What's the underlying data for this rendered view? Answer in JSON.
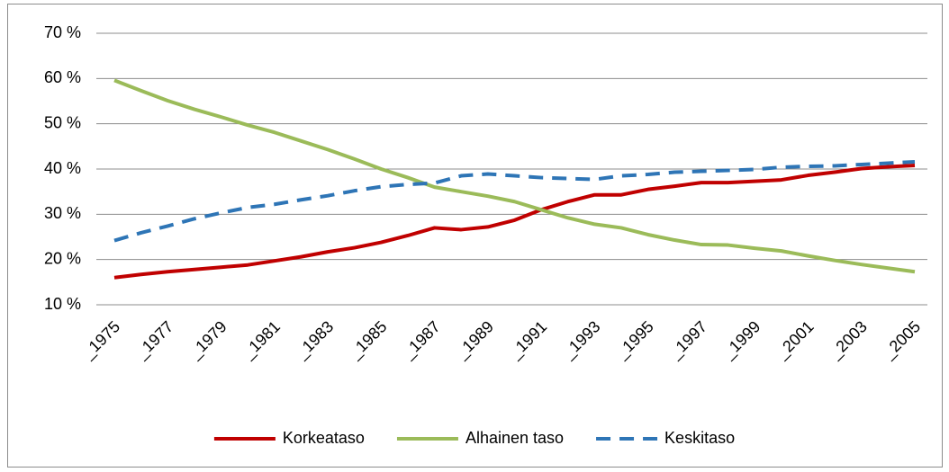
{
  "chart_data": {
    "type": "line",
    "categories": [
      "_1975",
      null,
      "_1977",
      null,
      "_1979",
      null,
      "_1981",
      null,
      "_1983",
      null,
      "_1985",
      null,
      "_1987",
      null,
      "_1989",
      null,
      "_1991",
      null,
      "_1993",
      null,
      "_1995",
      null,
      "_1997",
      null,
      "_1999",
      null,
      "_2001",
      null,
      "_2003",
      null,
      "_2005"
    ],
    "series": [
      {
        "name": "Korkeataso",
        "color": "#c00000",
        "style": "solid",
        "values": [
          16,
          16.7,
          17.3,
          17.8,
          18.3,
          18.8,
          19.7,
          20.6,
          21.7,
          22.6,
          23.8,
          25.3,
          27,
          26.6,
          27.2,
          28.7,
          31,
          32.8,
          34.3,
          34.3,
          35.5,
          36.2,
          37,
          37,
          37.3,
          37.6,
          38.6,
          39.3,
          40.1,
          40.5,
          40.8
        ]
      },
      {
        "name": "Alhainen taso",
        "color": "#9bbb59",
        "style": "solid",
        "values": [
          59.6,
          57.3,
          55.1,
          53.2,
          51.5,
          49.7,
          48.1,
          46.2,
          44.3,
          42.2,
          40,
          38.1,
          36,
          35,
          34,
          32.8,
          31,
          29.2,
          27.8,
          27,
          25.5,
          24.3,
          23.3,
          23.2,
          22.5,
          21.9,
          20.8,
          19.8,
          18.9,
          18.1,
          17.3
        ]
      },
      {
        "name": "Keskitaso",
        "color": "#2e75b6",
        "style": "dashed",
        "values": [
          24.2,
          25.9,
          27.4,
          29,
          30.3,
          31.5,
          32.2,
          33.2,
          34.1,
          35.2,
          36.1,
          36.6,
          36.9,
          38.5,
          38.9,
          38.5,
          38.1,
          37.9,
          37.7,
          38.5,
          38.8,
          39.3,
          39.5,
          39.7,
          39.9,
          40.4,
          40.6,
          40.7,
          41,
          41.3,
          41.6
        ]
      }
    ],
    "ylim": [
      10,
      70
    ],
    "yticks": [
      {
        "value": 10,
        "label": "10 %"
      },
      {
        "value": 20,
        "label": "20 %"
      },
      {
        "value": 30,
        "label": "30 %"
      },
      {
        "value": 40,
        "label": "40 %"
      },
      {
        "value": 50,
        "label": "50 %"
      },
      {
        "value": 60,
        "label": "60 %"
      },
      {
        "value": 70,
        "label": "70 %"
      }
    ],
    "grid": true,
    "legend": "bottom"
  }
}
